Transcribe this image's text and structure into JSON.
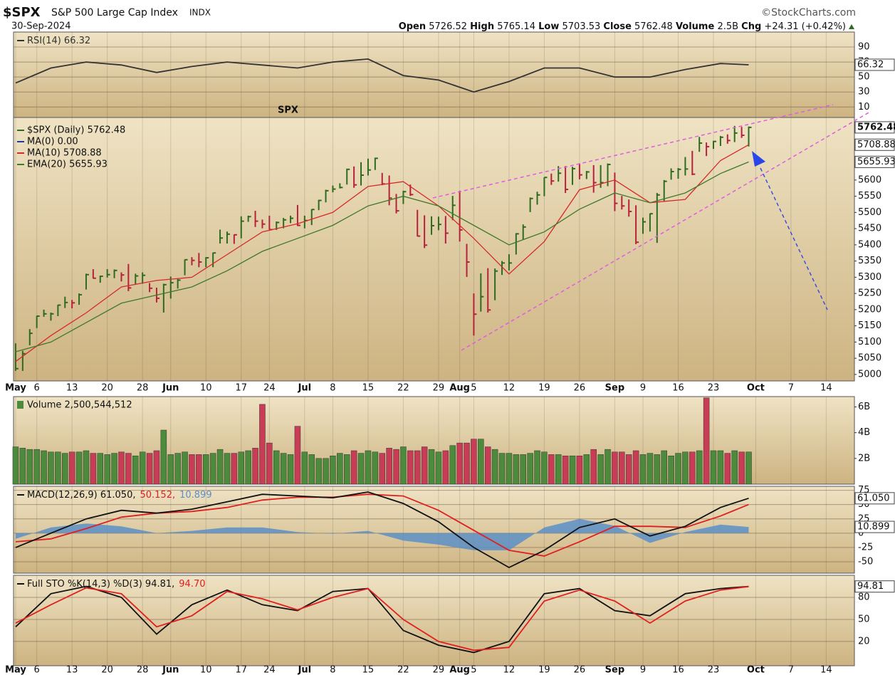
{
  "header": {
    "symbol": "$SPX",
    "name": "S&P 500 Large Cap Index",
    "exchange": "INDX",
    "source": "©StockCharts.com",
    "date": "30-Sep-2024",
    "quote": [
      {
        "label": "Open",
        "value": "5726.52"
      },
      {
        "label": "High",
        "value": "5765.14"
      },
      {
        "label": "Low",
        "value": "5703.53"
      },
      {
        "label": "Close",
        "value": "5762.48"
      },
      {
        "label": "Volume",
        "value": "2.5B"
      },
      {
        "label": "Chg",
        "value": "+24.31 (+0.42%)"
      }
    ]
  },
  "chart_data": [
    {
      "type": "line",
      "x": [
        0,
        5,
        10,
        15,
        20,
        25,
        30,
        35,
        40,
        45,
        50,
        55,
        60,
        65,
        70,
        75,
        80,
        85,
        90,
        95,
        100,
        104
      ],
      "ylim": [
        -4,
        110
      ],
      "yticks": [
        10,
        30,
        50,
        70,
        90
      ],
      "grid": true,
      "series": [
        {
          "name": "RSI(14) 66.32",
          "color": "#333333",
          "values": [
            42,
            62,
            70,
            66,
            56,
            64,
            70,
            66,
            62,
            70,
            74,
            52,
            46,
            30,
            44,
            62,
            62,
            50,
            50,
            60,
            68,
            66.32
          ],
          "end_label": "66.32"
        }
      ]
    },
    {
      "type": "ohlc",
      "annotation": "SPX",
      "up_color": "#2f6b1e",
      "down_color": "#b5223a",
      "grid": false,
      "xlim": [
        -0.3,
        119
      ],
      "xticks": [
        {
          "value": 0,
          "label": "May"
        },
        {
          "value": 3,
          "label": "6"
        },
        {
          "value": 8,
          "label": "13"
        },
        {
          "value": 13,
          "label": "20"
        },
        {
          "value": 18,
          "label": "28"
        },
        {
          "value": 22,
          "label": "Jun"
        },
        {
          "value": 27,
          "label": "10"
        },
        {
          "value": 32,
          "label": "17"
        },
        {
          "value": 36,
          "label": "24"
        },
        {
          "value": 41,
          "label": "Jul"
        },
        {
          "value": 45,
          "label": "8"
        },
        {
          "value": 50,
          "label": "15"
        },
        {
          "value": 55,
          "label": "22"
        },
        {
          "value": 60,
          "label": "29"
        },
        {
          "value": 63,
          "label": "Aug"
        },
        {
          "value": 65,
          "label": "5"
        },
        {
          "value": 70,
          "label": "12"
        },
        {
          "value": 75,
          "label": "19"
        },
        {
          "value": 80,
          "label": "26"
        },
        {
          "value": 85,
          "label": "Sep"
        },
        {
          "value": 89,
          "label": "9"
        },
        {
          "value": 94,
          "label": "16"
        },
        {
          "value": 99,
          "label": "23"
        },
        {
          "value": 105,
          "label": "Oct"
        },
        {
          "value": 110,
          "label": "7"
        },
        {
          "value": 115,
          "label": "14"
        }
      ],
      "ylim": [
        4980,
        5793
      ],
      "yticks": [
        5000,
        5050,
        5100,
        5150,
        5200,
        5250,
        5300,
        5350,
        5400,
        5450,
        5500,
        5550,
        5600
      ],
      "close": [
        5018,
        5064,
        5127,
        5180,
        5187,
        5187,
        5214,
        5222,
        5221,
        5246,
        5308,
        5297,
        5303,
        5308,
        5321,
        5307,
        5267,
        5304,
        5306,
        5266,
        5235,
        5277,
        5283,
        5291,
        5354,
        5352,
        5347,
        5360,
        5375,
        5421,
        5433,
        5431,
        5473,
        5487,
        5473,
        5464,
        5447,
        5469,
        5477,
        5482,
        5460,
        5475,
        5509,
        5537,
        5567,
        5572,
        5577,
        5633,
        5585,
        5615,
        5631,
        5667,
        5588,
        5544,
        5505,
        5564,
        5555,
        5427,
        5399,
        5459,
        5463,
        5436,
        5522,
        5446,
        5347,
        5186,
        5240,
        5199,
        5319,
        5344,
        5344,
        5434,
        5455,
        5543,
        5554,
        5608,
        5597,
        5621,
        5571,
        5635,
        5616,
        5625,
        5592,
        5592,
        5648,
        5528,
        5520,
        5503,
        5408,
        5471,
        5496,
        5554,
        5596,
        5626,
        5633,
        5634,
        5618,
        5714,
        5703,
        5719,
        5732,
        5722,
        5745,
        5738,
        5762.48
      ],
      "high": [
        5096,
        5073,
        5140,
        5181,
        5200,
        5191,
        5215,
        5240,
        5230,
        5250,
        5311,
        5325,
        5305,
        5325,
        5324,
        5315,
        5341,
        5311,
        5315,
        5282,
        5268,
        5280,
        5302,
        5296,
        5355,
        5362,
        5375,
        5362,
        5376,
        5447,
        5441,
        5432,
        5488,
        5490,
        5505,
        5478,
        5490,
        5472,
        5483,
        5490,
        5523,
        5490,
        5510,
        5539,
        5570,
        5583,
        5590,
        5635,
        5642,
        5655,
        5666,
        5669,
        5622,
        5614,
        5557,
        5567,
        5586,
        5508,
        5491,
        5488,
        5487,
        5489,
        5551,
        5567,
        5403,
        5250,
        5312,
        5328,
        5327,
        5350,
        5371,
        5436,
        5463,
        5546,
        5564,
        5608,
        5620,
        5643,
        5643,
        5641,
        5651,
        5628,
        5646,
        5646,
        5651,
        5623,
        5551,
        5540,
        5522,
        5484,
        5497,
        5560,
        5600,
        5636,
        5637,
        5671,
        5690,
        5733,
        5716,
        5721,
        5736,
        5741,
        5767,
        5764,
        5765.14
      ],
      "low": [
        5011,
        5011,
        5090,
        5143,
        5178,
        5166,
        5180,
        5205,
        5204,
        5215,
        5262,
        5296,
        5283,
        5299,
        5297,
        5287,
        5257,
        5278,
        5280,
        5254,
        5222,
        5191,
        5234,
        5265,
        5306,
        5337,
        5331,
        5331,
        5331,
        5404,
        5404,
        5403,
        5420,
        5471,
        5455,
        5451,
        5447,
        5446,
        5451,
        5467,
        5458,
        5451,
        5461,
        5507,
        5531,
        5562,
        5574,
        5586,
        5576,
        5583,
        5614,
        5631,
        5584,
        5522,
        5497,
        5526,
        5551,
        5426,
        5390,
        5431,
        5445,
        5404,
        5476,
        5410,
        5301,
        5120,
        5194,
        5191,
        5229,
        5307,
        5321,
        5370,
        5417,
        5501,
        5524,
        5550,
        5585,
        5595,
        5560,
        5585,
        5602,
        5603,
        5561,
        5576,
        5581,
        5504,
        5509,
        5487,
        5402,
        5434,
        5441,
        5406,
        5535,
        5601,
        5604,
        5614,
        5615,
        5687,
        5674,
        5696,
        5705,
        5712,
        5717,
        5730,
        5703.53
      ],
      "end_label": "5762.48",
      "legend": [
        {
          "name": "$SPX (Daily) 5762.48",
          "color": "#2f6b1e"
        },
        {
          "name": "MA(0) 0.00",
          "color": "#1f3aa8"
        }
      ],
      "lines": [
        {
          "name": "MA(10) 5708.88",
          "color": "#d62a2a",
          "x": [
            0,
            5,
            10,
            15,
            20,
            25,
            30,
            35,
            40,
            45,
            50,
            55,
            60,
            65,
            70,
            75,
            80,
            85,
            90,
            95,
            100,
            104
          ],
          "values": [
            5040,
            5120,
            5190,
            5270,
            5290,
            5300,
            5370,
            5440,
            5465,
            5500,
            5580,
            5595,
            5520,
            5420,
            5310,
            5410,
            5570,
            5600,
            5530,
            5540,
            5660,
            5708.88
          ],
          "end_label": "5708.88"
        },
        {
          "name": "EMA(20) 5655.93",
          "color": "#3d7a2a",
          "x": [
            0,
            5,
            10,
            15,
            20,
            25,
            30,
            35,
            40,
            45,
            50,
            55,
            60,
            65,
            70,
            75,
            80,
            85,
            90,
            95,
            100,
            104
          ],
          "values": [
            5070,
            5100,
            5160,
            5220,
            5245,
            5270,
            5320,
            5380,
            5420,
            5460,
            5520,
            5550,
            5520,
            5460,
            5400,
            5440,
            5510,
            5560,
            5530,
            5560,
            5620,
            5655.93
          ],
          "end_label": "5655.93"
        }
      ]
    },
    {
      "type": "bar",
      "title": "Volume 2,500,544,512",
      "up_color": "#4c8a3c",
      "down_color": "#c83c55",
      "grid": false,
      "ylim": [
        0,
        6.8
      ],
      "yticks": [
        {
          "value": 2,
          "label": "2B"
        },
        {
          "value": 4,
          "label": "4B"
        },
        {
          "value": 6,
          "label": "6B"
        }
      ],
      "values": [
        2.9,
        2.8,
        2.7,
        2.7,
        2.6,
        2.5,
        2.5,
        2.4,
        2.5,
        2.5,
        2.6,
        2.4,
        2.4,
        2.3,
        2.4,
        2.5,
        2.4,
        2.2,
        2.5,
        2.4,
        2.6,
        4.2,
        2.3,
        2.4,
        2.5,
        2.3,
        2.3,
        2.3,
        2.4,
        2.7,
        2.4,
        2.4,
        2.5,
        2.6,
        2.8,
        6.2,
        3.2,
        2.6,
        2.4,
        2.3,
        4.5,
        2.5,
        2.3,
        2.0,
        2.0,
        2.2,
        2.4,
        2.3,
        2.6,
        2.4,
        2.6,
        2.5,
        2.4,
        2.8,
        2.7,
        2.9,
        2.6,
        2.6,
        2.9,
        2.7,
        2.5,
        2.6,
        3.0,
        3.2,
        3.2,
        3.5,
        3.5,
        2.9,
        2.7,
        2.4,
        2.4,
        2.3,
        2.3,
        2.4,
        2.6,
        2.5,
        2.3,
        2.3,
        2.2,
        2.2,
        2.2,
        2.3,
        2.7,
        2.3,
        2.7,
        2.5,
        2.5,
        2.3,
        2.6,
        2.3,
        2.4,
        2.3,
        2.6,
        2.2,
        2.4,
        2.5,
        2.5,
        2.6,
        6.7,
        2.6,
        2.6,
        2.4,
        2.6,
        2.5,
        2.500544512
      ]
    },
    {
      "type": "line",
      "x": [
        0,
        5,
        10,
        15,
        20,
        25,
        30,
        35,
        40,
        45,
        50,
        55,
        60,
        65,
        70,
        75,
        80,
        85,
        90,
        95,
        100,
        104
      ],
      "ylim": [
        -70,
        82
      ],
      "yticks": [
        -50,
        -25,
        0,
        25,
        50,
        75
      ],
      "grid": true,
      "series": [
        {
          "name": "10.899",
          "color": "#5b8fc7",
          "style": "histogram",
          "values": [
            -10,
            10,
            17,
            12,
            0,
            4,
            10,
            10,
            2,
            -1,
            4,
            -13,
            -20,
            -30,
            -30,
            10,
            25,
            13,
            -17,
            2,
            15,
            10.899
          ],
          "end_label": "10.899"
        },
        {
          "name": "50.152,",
          "color": "#e02020",
          "values": [
            -15,
            -10,
            8,
            28,
            35,
            38,
            45,
            58,
            63,
            63,
            68,
            65,
            40,
            5,
            -30,
            -40,
            -15,
            12,
            12,
            10,
            30,
            50.152
          ]
        },
        {
          "name": "MACD(12,26,9) 61.050,",
          "color": "#111111",
          "values": [
            -25,
            0,
            25,
            40,
            35,
            42,
            55,
            68,
            65,
            62,
            72,
            52,
            20,
            -25,
            -60,
            -30,
            10,
            25,
            -5,
            12,
            45,
            61.05
          ],
          "end_label": "61.050"
        }
      ],
      "legend_order": [
        2,
        1,
        0
      ]
    },
    {
      "type": "line",
      "x": [
        0,
        5,
        10,
        15,
        20,
        25,
        30,
        35,
        40,
        45,
        50,
        55,
        60,
        65,
        70,
        75,
        80,
        85,
        90,
        95,
        100,
        104
      ],
      "ylim": [
        -13,
        110
      ],
      "yticks": [
        20,
        50,
        80
      ],
      "grid": true,
      "series": [
        {
          "name": "Full STO %K(14,3) %D(3) 94.81,",
          "color": "#111111",
          "values": [
            40,
            85,
            95,
            80,
            30,
            70,
            90,
            70,
            62,
            88,
            92,
            35,
            15,
            5,
            20,
            85,
            92,
            62,
            55,
            85,
            92,
            94.81
          ],
          "end_label": "94.81"
        },
        {
          "name": "94.70",
          "color": "#e02020",
          "values": [
            45,
            70,
            93,
            85,
            40,
            55,
            88,
            78,
            63,
            80,
            92,
            50,
            20,
            8,
            12,
            75,
            90,
            75,
            45,
            75,
            90,
            94.7
          ]
        }
      ]
    }
  ]
}
